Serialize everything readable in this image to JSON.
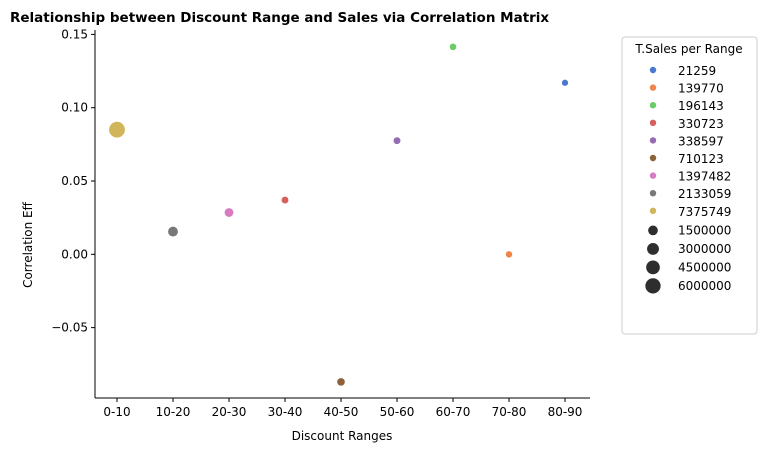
{
  "chart_data": {
    "type": "scatter",
    "title": "Relationship between Discount Range and Sales via Correlation Matrix",
    "xlabel": "Discount Ranges",
    "ylabel": "Correlation Eff",
    "categories": [
      "0-10",
      "10-20",
      "20-30",
      "30-40",
      "40-50",
      "50-60",
      "60-70",
      "70-80",
      "80-90"
    ],
    "ylim": [
      -0.098,
      0.153
    ],
    "yticks": [
      -0.05,
      0.0,
      0.05,
      0.1,
      0.15
    ],
    "ytick_labels": [
      "−0.05",
      "0.00",
      "0.05",
      "0.10",
      "0.15"
    ],
    "grid": false,
    "legend_placement": "outside-right",
    "legend_title": "T.Sales per Range",
    "points": [
      {
        "x": "0-10",
        "y": 0.085,
        "sales": 7375749,
        "color": "#d1b55a"
      },
      {
        "x": "10-20",
        "y": 0.0155,
        "sales": 2133059,
        "color": "#797979"
      },
      {
        "x": "20-30",
        "y": 0.0285,
        "sales": 1397482,
        "color": "#d67bc2"
      },
      {
        "x": "30-40",
        "y": 0.037,
        "sales": 330723,
        "color": "#d65f5f"
      },
      {
        "x": "40-50",
        "y": -0.087,
        "sales": 710123,
        "color": "#8c613c"
      },
      {
        "x": "50-60",
        "y": 0.0775,
        "sales": 338597,
        "color": "#956cb4"
      },
      {
        "x": "60-70",
        "y": 0.1415,
        "sales": 196143,
        "color": "#6acc64"
      },
      {
        "x": "70-80",
        "y": 0.0,
        "sales": 139770,
        "color": "#ee854a"
      },
      {
        "x": "80-90",
        "y": 0.117,
        "sales": 21259,
        "color": "#4878d0"
      }
    ],
    "hue_legend": [
      {
        "label": "21259",
        "color": "#4878d0"
      },
      {
        "label": "139770",
        "color": "#ee854a"
      },
      {
        "label": "196143",
        "color": "#6acc64"
      },
      {
        "label": "330723",
        "color": "#d65f5f"
      },
      {
        "label": "338597",
        "color": "#956cb4"
      },
      {
        "label": "710123",
        "color": "#8c613c"
      },
      {
        "label": "1397482",
        "color": "#d67bc2"
      },
      {
        "label": "2133059",
        "color": "#797979"
      },
      {
        "label": "7375749",
        "color": "#d1b55a"
      }
    ],
    "size_legend": [
      {
        "label": "1500000",
        "value": 1500000,
        "color": "#2e2e2e"
      },
      {
        "label": "3000000",
        "value": 3000000,
        "color": "#2e2e2e"
      },
      {
        "label": "4500000",
        "value": 4500000,
        "color": "#2e2e2e"
      },
      {
        "label": "6000000",
        "value": 6000000,
        "color": "#2e2e2e"
      }
    ]
  }
}
